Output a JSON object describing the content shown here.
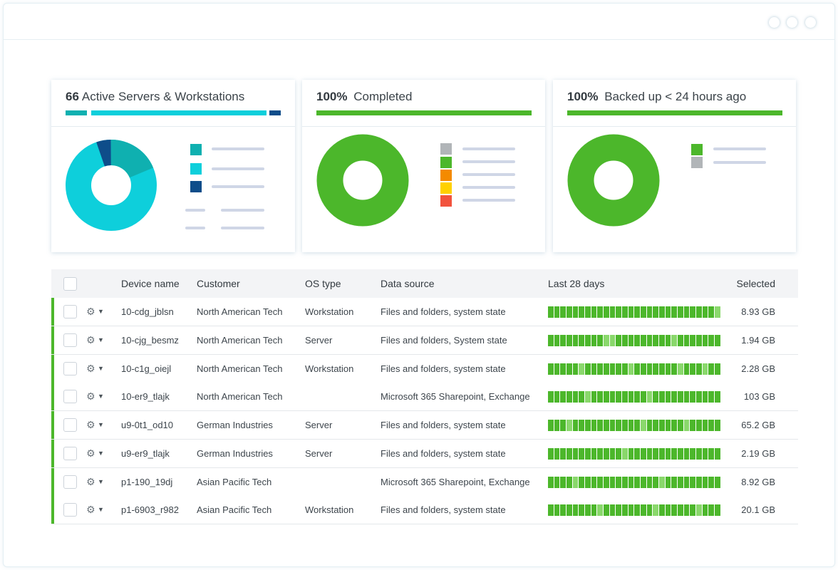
{
  "cards": [
    {
      "count": "66",
      "title": "Active Servers & Workstations",
      "colors": {
        "teal": "#0fb0b0",
        "cyan": "#0ecfdb",
        "navy": "#0e4d8a"
      }
    },
    {
      "percent": "100%",
      "title": "Completed",
      "colors": {
        "green": "#4cb72b",
        "gray": "#b1b5b8",
        "orange": "#f48a00",
        "yellow": "#ffd100",
        "red": "#f2533d"
      }
    },
    {
      "percent": "100%",
      "title": "Backed up < 24 hours ago",
      "colors": {
        "green": "#4cb72b",
        "gray": "#b1b5b8"
      }
    }
  ],
  "table": {
    "headers": {
      "device": "Device name",
      "customer": "Customer",
      "os": "OS type",
      "source": "Data source",
      "last28": "Last 28 days",
      "selected": "Selected"
    },
    "rows": [
      {
        "device": "10-cdg_jblsn",
        "customer": "North American Tech",
        "os": "Workstation",
        "source": "Files and folders, system state",
        "selected": "8.93 GB"
      },
      {
        "device": "10-cjg_besmz",
        "customer": "North American Tech",
        "os": "Server",
        "source": "Files and folders, System state",
        "selected": "1.94 GB"
      },
      {
        "device": "10-c1g_oiejl",
        "customer": "North American Tech",
        "os": "Workstation",
        "source": "Files and folders, system state",
        "selected": "2.28 GB"
      },
      {
        "device": "10-er9_tlajk",
        "customer": "North American Tech",
        "os": "",
        "source": "Microsoft 365 Sharepoint, Exchange",
        "selected": "103 GB"
      },
      {
        "device": "u9-0t1_od10",
        "customer": "German Industries",
        "os": "Server",
        "source": "Files and folders, system state",
        "selected": "65.2 GB"
      },
      {
        "device": "u9-er9_tlajk",
        "customer": "German Industries",
        "os": "Server",
        "source": "Files and folders, system state",
        "selected": "2.19 GB"
      },
      {
        "device": "p1-190_19dj",
        "customer": "Asian Pacific Tech",
        "os": "",
        "source": "Microsoft 365 Sharepoint, Exchange",
        "selected": "8.92 GB"
      },
      {
        "device": "p1-6903_r982",
        "customer": "Asian Pacific Tech",
        "os": "Workstation",
        "source": "Files and folders, system state",
        "selected": "20.1 GB"
      }
    ]
  },
  "icons": {
    "row_settings": "gear-icon",
    "row_menu": "caret-down-icon"
  },
  "accent": "#4cb72b"
}
